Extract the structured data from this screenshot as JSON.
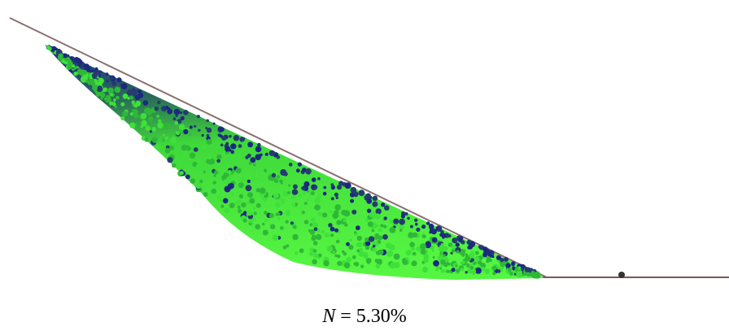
{
  "caption": {
    "variable": "N",
    "text": "= 5.30%"
  }
}
